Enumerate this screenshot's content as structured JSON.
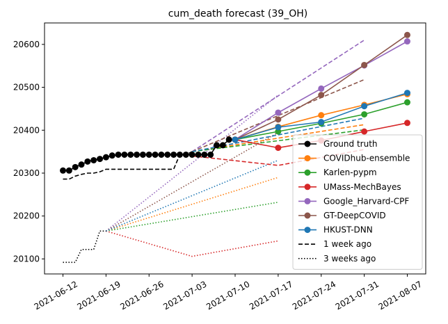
{
  "chart_data": {
    "type": "line",
    "title": "cum_death forecast (39_OH)",
    "xlabel": "",
    "ylabel": "",
    "x_ticks": [
      "2021-06-12",
      "2021-06-19",
      "2021-06-26",
      "2021-07-03",
      "2021-07-10",
      "2021-07-17",
      "2021-07-24",
      "2021-07-31",
      "2021-08-07"
    ],
    "y_ticks": [
      20100,
      20200,
      20300,
      20400,
      20500,
      20600
    ],
    "xlim": [
      "2021-06-09",
      "2021-08-10"
    ],
    "ylim": [
      20065,
      20650
    ],
    "legend_position": "lower-right",
    "grid": false,
    "ground_truth": {
      "name": "Ground truth",
      "color": "#000000",
      "dates": [
        "2021-06-12",
        "2021-06-13",
        "2021-06-14",
        "2021-06-15",
        "2021-06-16",
        "2021-06-17",
        "2021-06-18",
        "2021-06-19",
        "2021-06-20",
        "2021-06-21",
        "2021-06-22",
        "2021-06-23",
        "2021-06-24",
        "2021-06-25",
        "2021-06-26",
        "2021-06-27",
        "2021-06-28",
        "2021-06-29",
        "2021-06-30",
        "2021-07-01",
        "2021-07-02",
        "2021-07-03",
        "2021-07-04",
        "2021-07-05",
        "2021-07-06",
        "2021-07-07",
        "2021-07-08",
        "2021-07-09",
        "2021-07-10"
      ],
      "values": [
        20306,
        20306,
        20314,
        20320,
        20327,
        20330,
        20333,
        20337,
        20341,
        20343,
        20343,
        20343,
        20343,
        20343,
        20343,
        20343,
        20343,
        20343,
        20343,
        20343,
        20343,
        20343,
        20343,
        20343,
        20343,
        20365,
        20365,
        20378,
        20378
      ]
    },
    "series": [
      {
        "name": "COVIDhub-ensemble",
        "color": "#ff7f0e",
        "dates": [
          "2021-07-10",
          "2021-07-17",
          "2021-07-24",
          "2021-07-31",
          "2021-08-07"
        ],
        "values": [
          20378,
          20408,
          20435,
          20459,
          20484
        ],
        "week1": [
          20350,
          20413
        ],
        "week3": [
          20165,
          20290
        ]
      },
      {
        "name": "Karlen-pypm",
        "color": "#2ca02c",
        "dates": [
          "2021-07-10",
          "2021-07-17",
          "2021-07-24",
          "2021-07-31",
          "2021-08-07"
        ],
        "values": [
          20378,
          20397,
          20416,
          20437,
          20465
        ],
        "week1": [
          20350,
          20401
        ],
        "week3": [
          20165,
          20232
        ]
      },
      {
        "name": "UMass-MechBayes",
        "color": "#d62728",
        "dates": [
          "2021-07-10",
          "2021-07-17",
          "2021-07-24",
          "2021-07-31",
          "2021-08-07"
        ],
        "values": [
          20378,
          20359,
          20376,
          20397,
          20417
        ],
        "week1": [
          20340,
          20318,
          20355
        ],
        "week3": [
          20165,
          20106,
          20142
        ]
      },
      {
        "name": "Google_Harvard-CPF",
        "color": "#9467bd",
        "dates": [
          "2021-07-10",
          "2021-07-17",
          "2021-07-24",
          "2021-07-31",
          "2021-08-07"
        ],
        "values": [
          20378,
          20441,
          20497,
          20551,
          20607
        ],
        "week1": [
          20350,
          20610
        ],
        "week3": [
          20165,
          20482
        ]
      },
      {
        "name": "GT-DeepCOVID",
        "color": "#8c564b",
        "dates": [
          "2021-07-10",
          "2021-07-17",
          "2021-07-24",
          "2021-07-31",
          "2021-08-07"
        ],
        "values": [
          20378,
          20425,
          20482,
          20552,
          20622
        ],
        "week1": [
          20350,
          20518
        ],
        "week3": [
          20165,
          20395
        ]
      },
      {
        "name": "HKUST-DNN",
        "color": "#1f77b4",
        "dates": [
          "2021-07-10",
          "2021-07-17",
          "2021-07-24",
          "2021-07-31",
          "2021-08-07"
        ],
        "values": [
          20378,
          20407,
          20419,
          20456,
          20487
        ],
        "week1": [
          20350,
          20428
        ],
        "week3": [
          20165,
          20330
        ]
      }
    ],
    "one_week_ago": {
      "name": "1 week ago",
      "color": "#000000",
      "dates": [
        "2021-06-12",
        "2021-06-13",
        "2021-06-14",
        "2021-06-15",
        "2021-06-16",
        "2021-06-17",
        "2021-06-18",
        "2021-06-19",
        "2021-06-20",
        "2021-06-21",
        "2021-06-22",
        "2021-06-23",
        "2021-06-24",
        "2021-06-25",
        "2021-06-26",
        "2021-06-27",
        "2021-06-28",
        "2021-06-29",
        "2021-06-30",
        "2021-07-01",
        "2021-07-02",
        "2021-07-03"
      ],
      "values": [
        20286,
        20286,
        20293,
        20297,
        20300,
        20300,
        20303,
        20309,
        20309,
        20309,
        20309,
        20309,
        20309,
        20309,
        20309,
        20309,
        20309,
        20309,
        20309,
        20343,
        20343,
        20350
      ],
      "forecast_start": "2021-07-03",
      "forecast_end": "2021-07-31"
    },
    "three_weeks_ago": {
      "name": "3 weeks ago",
      "color": "#000000",
      "dates": [
        "2021-06-12",
        "2021-06-13",
        "2021-06-14",
        "2021-06-15",
        "2021-06-16",
        "2021-06-17",
        "2021-06-18",
        "2021-06-19"
      ],
      "values": [
        20092,
        20092,
        20092,
        20122,
        20122,
        20122,
        20165,
        20165
      ],
      "forecast_start": "2021-06-19",
      "forecast_end": "2021-07-17"
    },
    "legend": [
      "Ground truth",
      "COVIDhub-ensemble",
      "Karlen-pypm",
      "UMass-MechBayes",
      "Google_Harvard-CPF",
      "GT-DeepCOVID",
      "HKUST-DNN",
      "1 week ago",
      "3 weeks ago"
    ]
  }
}
